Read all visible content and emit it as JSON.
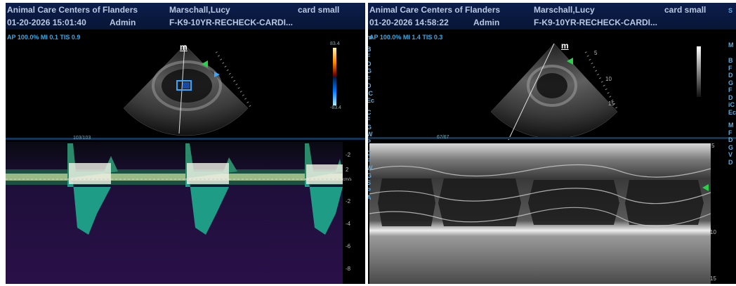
{
  "left_screen": {
    "clinic": "Animal Care Centers of Flanders",
    "patient": "Marschall,Lucy",
    "probe": "card small",
    "datetime": "01-20-2026 15:01:40",
    "operator": "Admin",
    "study": "F-K9-10YR-RECHECK-CARDI...",
    "readout": "AP 100.0%  MI 0.1  TIS 0.9",
    "color_scale_top": "83.4",
    "color_scale_bottom": "-83.4",
    "sweep_label": "103/103",
    "doppler_unit": "cm/s",
    "doppler_ticks": [
      "-2",
      "2",
      "-2",
      "-4",
      "-6",
      "-8"
    ]
  },
  "right_screen": {
    "clinic": "Animal Care Centers of Flanders",
    "patient": "Marschall,Lucy",
    "probe": "card small",
    "datetime": "01-20-2026 14:58:22",
    "operator": "Admin",
    "study": "F-K9-10YR-RECHECK-CARDI...",
    "readout": "AP 100.0%  MI 1.4  TIS 0.3",
    "sweep_label": "67/67",
    "mmode_ticks": [
      "5",
      "10",
      "15"
    ],
    "sector_ticks": [
      "5",
      "10",
      "15"
    ],
    "side_panel_letters": [
      "m",
      "B",
      "F",
      "D",
      "G",
      "F",
      "D",
      "iC",
      "Ec",
      "C",
      "F",
      "G",
      "W",
      "P",
      "C",
      "F",
      "W",
      "G",
      "S",
      "P",
      "A"
    ],
    "far_panel_letters": [
      "S",
      "M",
      "B",
      "F",
      "D",
      "G",
      "F",
      "D",
      "iC",
      "Ec",
      "M",
      "F",
      "D",
      "G",
      "V",
      "D"
    ]
  },
  "colors": {
    "header_bg": "#0c1e4c",
    "header_text": "#b9c8e2",
    "readout_text": "#3fa7e0",
    "marker_green": "#2bd14a",
    "marker_blue": "#3aa6ff"
  }
}
